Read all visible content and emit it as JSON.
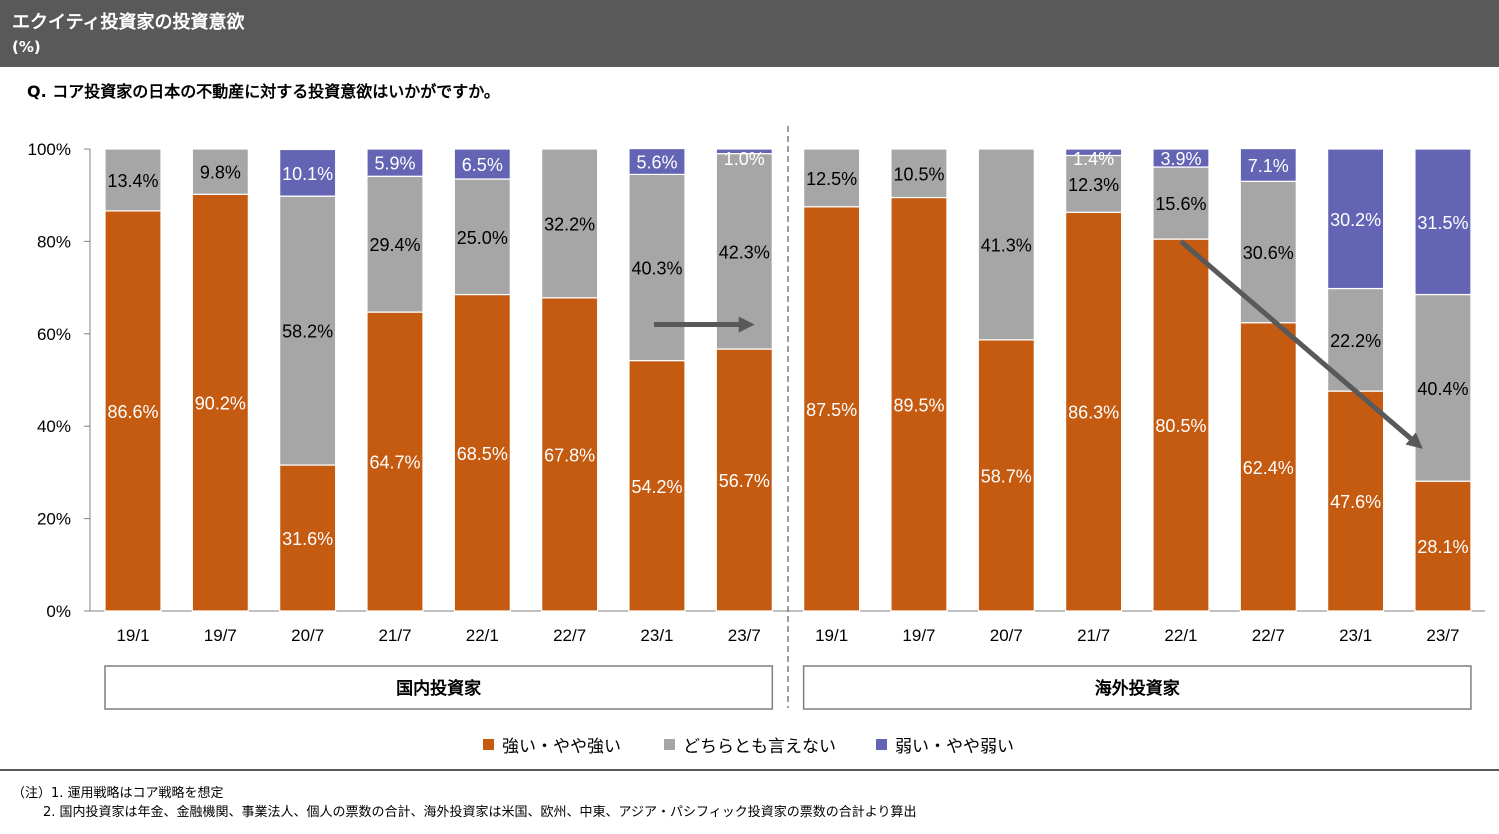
{
  "header": {
    "title": "エクイティ投資家の投資意欲",
    "unit": "(%)"
  },
  "question": "Q. コア投資家の日本の不動産に対する投資意欲はいかがですか。",
  "colors": {
    "strong": "#C55A11",
    "neutral": "#A6A6A6",
    "weak": "#6464B4",
    "axis": "#808080",
    "arrow": "#595959"
  },
  "chart_data": {
    "type": "bar",
    "stacked": true,
    "title": "エクイティ投資家の投資意欲",
    "ylabel": "(%)",
    "ylim": [
      0,
      100
    ],
    "y_ticks": [
      "0%",
      "20%",
      "40%",
      "60%",
      "80%",
      "100%"
    ],
    "categories": [
      "19/1",
      "19/7",
      "20/7",
      "21/7",
      "22/1",
      "22/7",
      "23/1",
      "23/7",
      "19/1",
      "19/7",
      "20/7",
      "21/7",
      "22/1",
      "22/7",
      "23/1",
      "23/7"
    ],
    "groups": [
      {
        "label": "国内投資家",
        "count": 8
      },
      {
        "label": "海外投資家",
        "count": 8
      }
    ],
    "series": [
      {
        "name": "強い・やや強い",
        "key": "strong",
        "values": [
          86.6,
          90.2,
          31.6,
          64.7,
          68.5,
          67.8,
          54.2,
          56.7,
          87.5,
          89.5,
          58.7,
          86.3,
          80.5,
          62.4,
          47.6,
          28.1
        ],
        "labels": [
          "86.6%",
          "90.2%",
          "31.6%",
          "64.7%",
          "68.5%",
          "67.8%",
          "54.2%",
          "56.7%",
          "87.5%",
          "89.5%",
          "58.7%",
          "86.3%",
          "80.5%",
          "62.4%",
          "47.6%",
          "28.1%"
        ]
      },
      {
        "name": "どちらとも言えない",
        "key": "neutral",
        "values": [
          13.4,
          9.8,
          58.2,
          29.4,
          25.0,
          32.2,
          40.3,
          42.3,
          12.5,
          10.5,
          41.3,
          12.3,
          15.6,
          30.6,
          22.2,
          40.4
        ],
        "labels": [
          "13.4%",
          "9.8%",
          "58.2%",
          "29.4%",
          "25.0%",
          "32.2%",
          "40.3%",
          "42.3%",
          "12.5%",
          "10.5%",
          "41.3%",
          "12.3%",
          "15.6%",
          "30.6%",
          "22.2%",
          "40.4%"
        ]
      },
      {
        "name": "弱い・やや弱い",
        "key": "weak",
        "values": [
          0,
          0,
          10.1,
          5.9,
          6.5,
          0,
          5.6,
          1.0,
          0,
          0,
          0,
          1.4,
          3.9,
          7.1,
          30.2,
          31.5
        ],
        "labels": [
          "",
          "",
          "10.1%",
          "5.9%",
          "6.5%",
          "",
          "5.6%",
          "1.0%",
          "",
          "",
          "",
          "1.4%",
          "3.9%",
          "7.1%",
          "30.2%",
          "31.5%"
        ]
      }
    ],
    "annotations": [
      {
        "type": "arrow",
        "from": {
          "category_index": 6,
          "value": 62
        },
        "to": {
          "category_index": 7,
          "value": 62
        }
      },
      {
        "type": "arrow",
        "from": {
          "category_index": 12,
          "value": 80
        },
        "to": {
          "category_index": 15,
          "value": 36
        }
      }
    ]
  },
  "legend": {
    "strong": "強い・やや強い",
    "neutral": "どちらとも言えない",
    "weak": "弱い・やや弱い"
  },
  "notes": {
    "line1": "（注）1.  運用戦略はコア戦略を想定",
    "line2": "2.  国内投資家は年金、金融機関、事業法人、個人の票数の合計、海外投資家は米国、欧州、中東、アジア・パシフィック投資家の票数の合計より算出"
  }
}
